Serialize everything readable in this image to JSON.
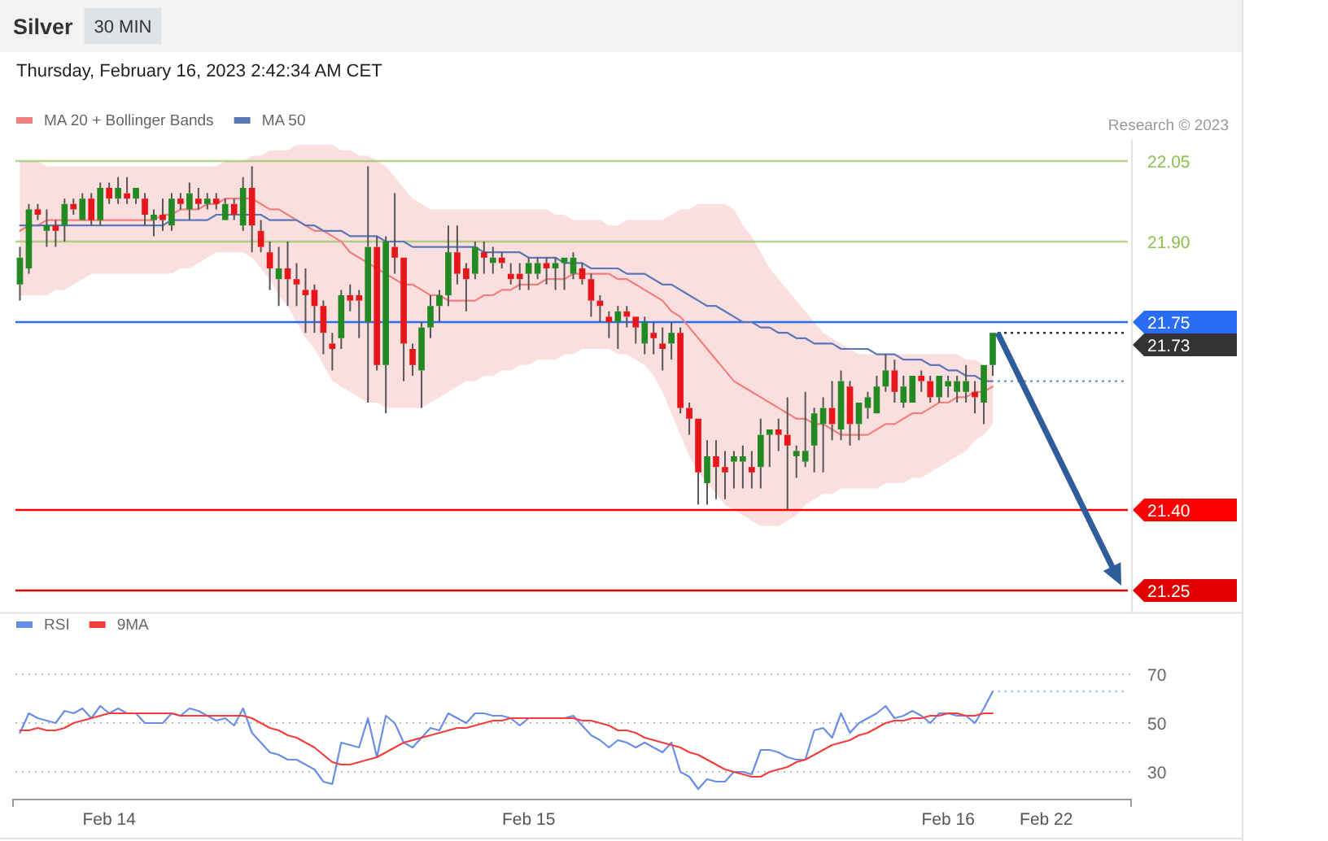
{
  "chart_data": [
    {
      "type": "candlestick",
      "title": "Silver",
      "subtitle": "Thursday, February 16, 2023 2:42:34 AM CET",
      "annotations": [
        "30 MIN",
        "Research © 2023"
      ],
      "categories": [
        null,
        null,
        null,
        null,
        null,
        null,
        null,
        null,
        null,
        null,
        null,
        null,
        null,
        null,
        null,
        null,
        null,
        null,
        null,
        null,
        null,
        null,
        null,
        null,
        null,
        null,
        null,
        null,
        null,
        null,
        null,
        null,
        null,
        null,
        null,
        null,
        null,
        null,
        null,
        null,
        null,
        null,
        null,
        null,
        null,
        null,
        null,
        null,
        null,
        null,
        null,
        null,
        null,
        null,
        null,
        null,
        null,
        null,
        null,
        null,
        null,
        null,
        null,
        null,
        null,
        null,
        null,
        null,
        null,
        null,
        null,
        null,
        null,
        null,
        null,
        null,
        null,
        null,
        null,
        null,
        null,
        null,
        null,
        null,
        null,
        null,
        null,
        null,
        null,
        null,
        null,
        null,
        null,
        null,
        null,
        null,
        null,
        null,
        null,
        null,
        null,
        null,
        null,
        null,
        null,
        null,
        null,
        null,
        null,
        null,
        null,
        null,
        null,
        null,
        null,
        null,
        null,
        null,
        null,
        null,
        null,
        null,
        null,
        null,
        null
      ],
      "ohlc": [
        [
          21.82,
          21.89,
          21.79,
          21.87
        ],
        [
          21.85,
          21.97,
          21.84,
          21.96
        ],
        [
          21.96,
          21.97,
          21.94,
          21.95
        ],
        [
          21.92,
          21.96,
          21.89,
          21.93
        ],
        [
          21.93,
          21.94,
          21.89,
          21.92
        ],
        [
          21.93,
          21.98,
          21.9,
          21.97
        ],
        [
          21.97,
          21.98,
          21.95,
          21.96
        ],
        [
          21.94,
          21.99,
          21.94,
          21.98
        ],
        [
          21.98,
          21.99,
          21.93,
          21.94
        ],
        [
          21.94,
          22.01,
          21.93,
          22.0
        ],
        [
          22.0,
          22.01,
          21.97,
          21.98
        ],
        [
          21.98,
          22.02,
          21.97,
          22.0
        ],
        [
          21.99,
          22.02,
          21.97,
          21.98
        ],
        [
          21.98,
          22.0,
          21.97,
          22.0
        ],
        [
          21.98,
          21.99,
          21.93,
          21.95
        ],
        [
          21.94,
          21.96,
          21.91,
          21.95
        ],
        [
          21.95,
          21.98,
          21.92,
          21.94
        ],
        [
          21.93,
          21.99,
          21.92,
          21.98
        ],
        [
          21.98,
          21.99,
          21.96,
          21.97
        ],
        [
          21.96,
          22.01,
          21.94,
          21.99
        ],
        [
          21.98,
          22.0,
          21.96,
          21.97
        ],
        [
          21.97,
          21.99,
          21.96,
          21.98
        ],
        [
          21.98,
          21.99,
          21.96,
          21.97
        ],
        [
          21.94,
          21.98,
          21.94,
          21.97
        ],
        [
          21.97,
          21.98,
          21.94,
          21.95
        ],
        [
          21.93,
          22.02,
          21.92,
          22.0
        ],
        [
          22.0,
          22.04,
          21.88,
          21.93
        ],
        [
          21.92,
          21.94,
          21.88,
          21.89
        ],
        [
          21.88,
          21.9,
          21.81,
          21.85
        ],
        [
          21.83,
          21.89,
          21.78,
          21.85
        ],
        [
          21.85,
          21.9,
          21.78,
          21.83
        ],
        [
          21.83,
          21.86,
          21.78,
          21.82
        ],
        [
          21.81,
          21.85,
          21.73,
          21.8
        ],
        [
          21.81,
          21.82,
          21.73,
          21.78
        ],
        [
          21.78,
          21.79,
          21.69,
          21.73
        ],
        [
          21.71,
          21.73,
          21.66,
          21.7
        ],
        [
          21.72,
          21.81,
          21.7,
          21.8
        ],
        [
          21.8,
          21.82,
          21.77,
          21.79
        ],
        [
          21.8,
          21.81,
          21.72,
          21.79
        ],
        [
          21.75,
          22.04,
          21.6,
          21.89
        ],
        [
          21.89,
          21.91,
          21.66,
          21.67
        ],
        [
          21.67,
          21.91,
          21.58,
          21.9
        ],
        [
          21.89,
          21.99,
          21.84,
          21.87
        ],
        [
          21.87,
          21.87,
          21.64,
          21.71
        ],
        [
          21.7,
          21.71,
          21.65,
          21.67
        ],
        [
          21.66,
          21.75,
          21.59,
          21.74
        ],
        [
          21.74,
          21.8,
          21.72,
          21.78
        ],
        [
          21.78,
          21.81,
          21.75,
          21.8
        ],
        [
          21.8,
          21.93,
          21.78,
          21.88
        ],
        [
          21.88,
          21.93,
          21.82,
          21.84
        ],
        [
          21.85,
          21.86,
          21.77,
          21.83
        ],
        [
          21.84,
          21.9,
          21.83,
          21.89
        ],
        [
          21.88,
          21.9,
          21.84,
          21.87
        ],
        [
          21.86,
          21.89,
          21.84,
          21.87
        ],
        [
          21.87,
          21.88,
          21.85,
          21.86
        ],
        [
          21.84,
          21.86,
          21.82,
          21.83
        ],
        [
          21.84,
          21.86,
          21.81,
          21.83
        ],
        [
          21.84,
          21.87,
          21.81,
          21.86
        ],
        [
          21.84,
          21.87,
          21.83,
          21.86
        ],
        [
          21.86,
          21.87,
          21.82,
          21.85
        ],
        [
          21.85,
          21.87,
          21.81,
          21.86
        ],
        [
          21.86,
          21.87,
          21.81,
          21.87
        ],
        [
          21.84,
          21.88,
          21.83,
          21.87
        ],
        [
          21.85,
          21.86,
          21.82,
          21.83
        ],
        [
          21.83,
          21.84,
          21.76,
          21.79
        ],
        [
          21.79,
          21.8,
          21.75,
          21.78
        ],
        [
          21.76,
          21.77,
          21.72,
          21.75
        ],
        [
          21.75,
          21.78,
          21.7,
          21.77
        ],
        [
          21.77,
          21.78,
          21.74,
          21.76
        ],
        [
          21.76,
          21.76,
          21.71,
          21.74
        ],
        [
          21.71,
          21.76,
          21.69,
          21.75
        ],
        [
          21.73,
          21.75,
          21.69,
          21.72
        ],
        [
          21.71,
          21.74,
          21.66,
          21.7
        ],
        [
          21.71,
          21.75,
          21.68,
          21.73
        ],
        [
          21.73,
          21.74,
          21.58,
          21.59
        ],
        [
          21.59,
          21.6,
          21.54,
          21.57
        ],
        [
          21.57,
          21.57,
          21.41,
          21.47
        ],
        [
          21.45,
          21.53,
          21.41,
          21.5
        ],
        [
          21.5,
          21.53,
          21.42,
          21.48
        ],
        [
          21.48,
          21.51,
          21.42,
          21.47
        ],
        [
          21.49,
          21.51,
          21.44,
          21.5
        ],
        [
          21.49,
          21.52,
          21.44,
          21.5
        ],
        [
          21.48,
          21.51,
          21.44,
          21.47
        ],
        [
          21.48,
          21.57,
          21.44,
          21.54
        ],
        [
          21.54,
          21.55,
          21.48,
          21.55
        ],
        [
          21.55,
          21.57,
          21.51,
          21.54
        ],
        [
          21.54,
          21.61,
          21.4,
          21.52
        ],
        [
          21.5,
          21.52,
          21.46,
          21.51
        ],
        [
          21.49,
          21.62,
          21.48,
          21.51
        ],
        [
          21.52,
          21.59,
          21.47,
          21.58
        ],
        [
          21.56,
          21.61,
          21.47,
          21.59
        ],
        [
          21.59,
          21.64,
          21.53,
          21.56
        ],
        [
          21.55,
          21.66,
          21.53,
          21.64
        ],
        [
          21.63,
          21.64,
          21.52,
          21.56
        ],
        [
          21.56,
          21.6,
          21.53,
          21.6
        ],
        [
          21.59,
          21.62,
          21.57,
          21.61
        ],
        [
          21.58,
          21.65,
          21.58,
          21.63
        ],
        [
          21.63,
          21.69,
          21.62,
          21.66
        ],
        [
          21.66,
          21.68,
          21.6,
          21.62
        ],
        [
          21.6,
          21.65,
          21.59,
          21.63
        ],
        [
          21.6,
          21.65,
          21.6,
          21.65
        ],
        [
          21.65,
          21.66,
          21.62,
          21.64
        ],
        [
          21.64,
          21.65,
          21.6,
          21.61
        ],
        [
          21.61,
          21.65,
          21.6,
          21.65
        ],
        [
          21.63,
          21.65,
          21.61,
          21.64
        ],
        [
          21.62,
          21.65,
          21.6,
          21.64
        ],
        [
          21.62,
          21.67,
          21.6,
          21.64
        ],
        [
          21.62,
          21.64,
          21.58,
          21.61
        ],
        [
          21.6,
          21.67,
          21.56,
          21.67
        ],
        [
          21.67,
          21.73,
          21.65,
          21.73
        ],
        null,
        null,
        null,
        null,
        null,
        null,
        null,
        null,
        null,
        null,
        null,
        null,
        null,
        null,
        null
      ],
      "colors": [
        "#238a23",
        "#238a23",
        "#e8161b",
        "#238a23",
        "#e8161b",
        "#238a23",
        "#e8161b",
        "#238a23",
        "#e8161b",
        "#238a23",
        "#e8161b",
        "#238a23",
        "#e8161b",
        "#238a23",
        "#e8161b",
        "#238a23",
        "#e8161b",
        "#238a23",
        "#e8161b",
        "#238a23",
        "#e8161b",
        "#238a23",
        "#e8161b",
        "#238a23",
        "#e8161b",
        "#238a23",
        "#e8161b",
        "#e8161b",
        "#e8161b",
        "#238a23",
        "#e8161b",
        "#e8161b",
        "#e8161b",
        "#e8161b",
        "#e8161b",
        "#e8161b",
        "#238a23",
        "#e8161b",
        "#e8161b",
        "#238a23",
        "#e8161b",
        "#238a23",
        "#e8161b",
        "#e8161b",
        "#e8161b",
        "#238a23",
        "#238a23",
        "#238a23",
        "#238a23",
        "#e8161b",
        "#e8161b",
        "#238a23",
        "#e8161b",
        "#238a23",
        "#e8161b",
        "#e8161b",
        "#e8161b",
        "#238a23",
        "#238a23",
        "#e8161b",
        "#238a23",
        "#238a23",
        "#238a23",
        "#e8161b",
        "#e8161b",
        "#e8161b",
        "#e8161b",
        "#238a23",
        "#e8161b",
        "#e8161b",
        "#238a23",
        "#e8161b",
        "#e8161b",
        "#238a23",
        "#e8161b",
        "#e8161b",
        "#e8161b",
        "#238a23",
        "#e8161b",
        "#e8161b",
        "#238a23",
        "#238a23",
        "#e8161b",
        "#238a23",
        "#238a23",
        "#e8161b",
        "#e8161b",
        "#238a23",
        "#238a23",
        "#238a23",
        "#238a23",
        "#e8161b",
        "#238a23",
        "#e8161b",
        "#238a23",
        "#238a23",
        "#238a23",
        "#238a23",
        "#e8161b",
        "#238a23",
        "#238a23",
        "#e8161b",
        "#e8161b",
        "#238a23",
        "#238a23",
        "#238a23",
        "#238a23",
        "#e8161b",
        "#238a23",
        "#238a23",
        null,
        null,
        null,
        null,
        null,
        null,
        null,
        null,
        null,
        null,
        null,
        null,
        null,
        null,
        null
      ],
      "series": [
        {
          "name": "MA 20 + Bollinger Bands",
          "type": "line",
          "color": "#f08080",
          "values": [
            21.92,
            21.93,
            21.93,
            21.94,
            21.94,
            21.94,
            21.94,
            21.94,
            21.94,
            21.94,
            21.94,
            21.94,
            21.94,
            21.94,
            21.94,
            21.94,
            21.95,
            21.95,
            21.96,
            21.96,
            21.96,
            21.97,
            21.97,
            21.98,
            21.98,
            21.98,
            21.98,
            21.97,
            21.96,
            21.96,
            21.95,
            21.94,
            21.93,
            21.92,
            21.92,
            21.91,
            21.9,
            21.88,
            21.87,
            21.86,
            21.85,
            21.84,
            21.83,
            21.82,
            21.82,
            21.81,
            21.8,
            21.8,
            21.79,
            21.79,
            21.79,
            21.79,
            21.8,
            21.8,
            21.81,
            21.81,
            21.82,
            21.82,
            21.82,
            21.83,
            21.83,
            21.83,
            21.84,
            21.84,
            21.84,
            21.84,
            21.84,
            21.83,
            21.83,
            21.82,
            21.81,
            21.8,
            21.79,
            21.77,
            21.76,
            21.74,
            21.72,
            21.7,
            21.68,
            21.66,
            21.64,
            21.63,
            21.62,
            21.61,
            21.6,
            21.59,
            21.58,
            21.57,
            21.57,
            21.56,
            21.56,
            21.55,
            21.54,
            21.54,
            21.54,
            21.54,
            21.55,
            21.56,
            21.56,
            21.57,
            21.58,
            21.58,
            21.59,
            21.6,
            21.6,
            21.61,
            21.61,
            21.62,
            21.62,
            21.63,
            null,
            null,
            null,
            null,
            null,
            null,
            null,
            null,
            null,
            null,
            null,
            null,
            null,
            null,
            null
          ],
          "upper": [
            22.05,
            22.05,
            22.05,
            22.04,
            22.04,
            22.04,
            22.04,
            22.04,
            22.04,
            22.04,
            22.04,
            22.04,
            22.04,
            22.04,
            22.04,
            22.04,
            22.04,
            22.04,
            22.04,
            22.04,
            22.04,
            22.04,
            22.04,
            22.05,
            22.05,
            22.05,
            22.06,
            22.06,
            22.07,
            22.07,
            22.07,
            22.08,
            22.08,
            22.08,
            22.08,
            22.08,
            22.07,
            22.07,
            22.06,
            22.06,
            22.05,
            22.04,
            22.02,
            22.0,
            21.98,
            21.97,
            21.96,
            21.96,
            21.96,
            21.96,
            21.96,
            21.96,
            21.96,
            21.96,
            21.96,
            21.96,
            21.96,
            21.96,
            21.96,
            21.96,
            21.95,
            21.95,
            21.94,
            21.94,
            21.94,
            21.94,
            21.93,
            21.93,
            21.94,
            21.94,
            21.94,
            21.94,
            21.94,
            21.95,
            21.96,
            21.96,
            21.97,
            21.97,
            21.97,
            21.97,
            21.96,
            21.93,
            21.91,
            21.88,
            21.85,
            21.83,
            21.81,
            21.79,
            21.77,
            21.75,
            21.73,
            21.72,
            21.71,
            21.7,
            21.69,
            21.69,
            21.69,
            21.69,
            21.69,
            21.69,
            21.69,
            21.69,
            21.69,
            21.69,
            21.69,
            21.69,
            21.68,
            21.68,
            21.67,
            21.67,
            null,
            null,
            null,
            null,
            null,
            null,
            null,
            null,
            null,
            null,
            null,
            null,
            null,
            null,
            null
          ],
          "lower": [
            21.8,
            21.8,
            21.8,
            21.8,
            21.81,
            21.81,
            21.82,
            21.83,
            21.84,
            21.84,
            21.84,
            21.84,
            21.84,
            21.84,
            21.84,
            21.84,
            21.84,
            21.84,
            21.85,
            21.85,
            21.86,
            21.87,
            21.88,
            21.88,
            21.88,
            21.88,
            21.87,
            21.85,
            21.83,
            21.8,
            21.78,
            21.75,
            21.72,
            21.7,
            21.67,
            21.64,
            21.63,
            21.62,
            21.61,
            21.6,
            21.6,
            21.59,
            21.59,
            21.59,
            21.59,
            21.59,
            21.6,
            21.61,
            21.62,
            21.63,
            21.64,
            21.64,
            21.65,
            21.65,
            21.66,
            21.66,
            21.67,
            21.67,
            21.68,
            21.68,
            21.68,
            21.69,
            21.69,
            21.7,
            21.7,
            21.7,
            21.7,
            21.69,
            21.69,
            21.68,
            21.67,
            21.65,
            21.62,
            21.58,
            21.54,
            21.5,
            21.47,
            21.45,
            21.43,
            21.41,
            21.4,
            21.39,
            21.38,
            21.37,
            21.37,
            21.37,
            21.38,
            21.39,
            21.41,
            21.42,
            21.43,
            21.43,
            21.44,
            21.44,
            21.44,
            21.44,
            21.44,
            21.45,
            21.45,
            21.45,
            21.46,
            21.46,
            21.47,
            21.48,
            21.49,
            21.5,
            21.51,
            21.53,
            21.54,
            21.56,
            null,
            null,
            null,
            null,
            null,
            null,
            null,
            null,
            null,
            null,
            null,
            null,
            null,
            null,
            null
          ]
        },
        {
          "name": "MA 50",
          "type": "line",
          "color": "#5a78b8",
          "values": [
            21.93,
            21.93,
            21.93,
            21.93,
            21.93,
            21.93,
            21.93,
            21.93,
            21.93,
            21.93,
            21.93,
            21.93,
            21.93,
            21.93,
            21.93,
            21.93,
            21.93,
            21.94,
            21.94,
            21.94,
            21.94,
            21.94,
            21.95,
            21.95,
            21.95,
            21.95,
            21.95,
            21.95,
            21.94,
            21.94,
            21.94,
            21.94,
            21.93,
            21.93,
            21.92,
            21.92,
            21.92,
            21.91,
            21.91,
            21.91,
            21.91,
            21.9,
            21.9,
            21.9,
            21.89,
            21.89,
            21.89,
            21.89,
            21.89,
            21.89,
            21.89,
            21.89,
            21.88,
            21.88,
            21.88,
            21.88,
            21.88,
            21.87,
            21.87,
            21.87,
            21.87,
            21.86,
            21.86,
            21.86,
            21.85,
            21.85,
            21.85,
            21.85,
            21.84,
            21.84,
            21.84,
            21.83,
            21.82,
            21.82,
            21.81,
            21.8,
            21.79,
            21.78,
            21.78,
            21.77,
            21.76,
            21.75,
            21.75,
            21.74,
            21.74,
            21.73,
            21.73,
            21.72,
            21.72,
            21.71,
            21.71,
            21.71,
            21.7,
            21.7,
            21.7,
            21.7,
            21.69,
            21.69,
            21.69,
            21.68,
            21.68,
            21.68,
            21.67,
            21.67,
            21.66,
            21.66,
            21.65,
            21.65,
            21.64,
            21.64,
            null,
            null,
            null,
            null,
            null,
            null,
            null,
            null,
            null,
            null,
            null,
            null,
            null,
            null,
            null
          ]
        }
      ],
      "ylim": [
        21.21,
        22.09
      ],
      "yticks": [
        22.05,
        {
          "value": 21.9,
          "label": "21.90"
        },
        21.75,
        {
          "value": 21.4,
          "label": "21.40"
        },
        21.25
      ],
      "ref_lines": [
        {
          "axis": "y",
          "value": 22.05,
          "color": "#8cc152"
        },
        {
          "axis": "y",
          "value": 21.9,
          "color": "#8cc152"
        },
        {
          "axis": "y",
          "value": 21.75,
          "color": "#2a6df4"
        },
        {
          "axis": "y",
          "value": 21.73,
          "label": "21.73",
          "color": "#333333",
          "line_style": "dotted"
        },
        {
          "axis": "y",
          "value": 21.64,
          "color": "#6f8fd8",
          "line_style": "dotted"
        },
        {
          "axis": "y",
          "value": 21.4,
          "color": "#ff0000"
        },
        {
          "axis": "y",
          "value": 21.25,
          "color": "#e00000"
        }
      ],
      "legend": "top left",
      "tick_labels": "y"
    },
    {
      "type": "line",
      "categories": [
        null,
        null,
        null,
        null,
        null,
        null,
        null,
        null,
        null,
        null,
        "Feb 14",
        null,
        null,
        null,
        null,
        null,
        null,
        null,
        null,
        null,
        null,
        null,
        null,
        null,
        null,
        null,
        null,
        null,
        null,
        null,
        null,
        null,
        null,
        null,
        null,
        null,
        null,
        null,
        null,
        null,
        null,
        null,
        null,
        null,
        null,
        null,
        null,
        null,
        null,
        null,
        null,
        null,
        null,
        null,
        null,
        null,
        null,
        "Feb 15",
        null,
        null,
        null,
        null,
        null,
        null,
        null,
        null,
        null,
        null,
        null,
        null,
        null,
        null,
        null,
        null,
        null,
        null,
        null,
        null,
        null,
        null,
        null,
        null,
        null,
        null,
        null,
        null,
        null,
        null,
        null,
        null,
        null,
        null,
        null,
        null,
        null,
        null,
        null,
        null,
        null,
        null,
        null,
        null,
        null,
        null,
        "Feb 16",
        null,
        null,
        null,
        null,
        null,
        null,
        null,
        null,
        null,
        null,
        "Feb 22",
        null,
        null,
        null,
        null,
        null,
        null,
        null,
        null,
        null
      ],
      "series": [
        {
          "name": "RSI",
          "color": "#6a8ee6",
          "values": [
            46,
            54,
            52,
            51,
            50,
            55,
            54,
            56,
            52,
            57,
            54,
            56,
            54,
            54,
            50,
            50,
            50,
            54,
            53,
            56,
            55,
            53,
            51,
            52,
            49,
            56,
            46,
            42,
            38,
            37,
            35,
            35,
            33,
            31,
            26,
            25,
            42,
            41,
            40,
            52,
            36,
            53,
            50,
            42,
            40,
            44,
            48,
            47,
            54,
            52,
            50,
            54,
            54,
            53,
            53,
            52,
            49,
            52,
            52,
            52,
            52,
            52,
            53,
            49,
            45,
            43,
            40,
            43,
            42,
            40,
            42,
            40,
            38,
            42,
            30,
            28,
            23,
            27,
            26,
            26,
            30,
            30,
            29,
            39,
            39,
            38,
            36,
            35,
            35,
            47,
            48,
            44,
            54,
            46,
            50,
            52,
            54,
            57,
            52,
            53,
            55,
            53,
            50,
            54,
            54,
            53,
            53,
            50,
            56,
            63,
            null,
            null,
            null,
            null,
            null,
            null,
            null,
            null,
            null,
            null,
            null,
            null,
            null,
            null,
            null
          ]
        },
        {
          "name": "9MA",
          "color": "#f53d3d",
          "values": [
            47,
            47,
            48,
            47,
            47,
            48,
            50,
            51,
            52,
            53,
            54,
            54,
            54,
            54,
            54,
            54,
            54,
            54,
            53,
            53,
            53,
            53,
            53,
            53,
            53,
            53,
            52,
            50,
            48,
            47,
            45,
            44,
            42,
            40,
            37,
            34,
            33,
            33,
            34,
            35,
            36,
            38,
            40,
            42,
            43,
            44,
            45,
            46,
            47,
            48,
            48,
            49,
            50,
            51,
            51,
            52,
            52,
            52,
            52,
            52,
            52,
            52,
            52,
            51,
            51,
            50,
            49,
            47,
            47,
            46,
            44,
            43,
            42,
            41,
            40,
            38,
            37,
            35,
            33,
            31,
            30,
            29,
            28,
            28,
            30,
            31,
            32,
            34,
            35,
            37,
            39,
            41,
            42,
            43,
            45,
            46,
            48,
            50,
            51,
            51,
            52,
            52,
            53,
            53,
            54,
            54,
            53,
            53,
            54,
            54,
            null,
            null,
            null,
            null,
            null,
            null,
            null,
            null,
            null,
            null,
            null,
            null,
            null,
            null,
            null
          ]
        }
      ],
      "ylim": [
        19,
        70
      ],
      "yticks": [
        70,
        50,
        30
      ],
      "grid": "y",
      "legend": "top left",
      "ref_lines": [
        {
          "axis": "y",
          "value": 63,
          "color": "#8fa8ef",
          "line_style": "dotted"
        }
      ]
    }
  ]
}
